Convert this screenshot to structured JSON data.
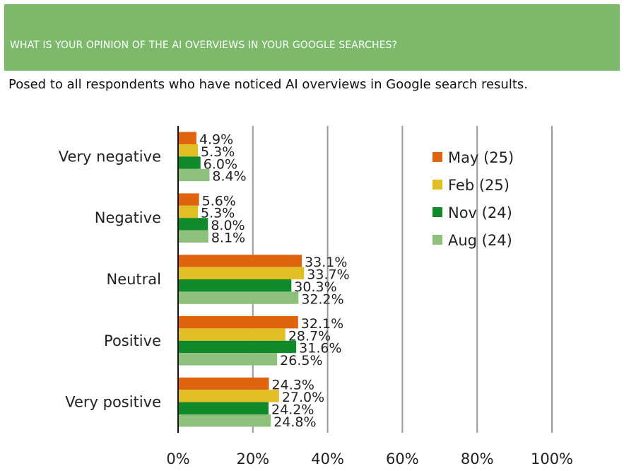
{
  "header": {
    "title": "WHAT IS YOUR OPINION OF THE AI OVERVIEWS IN YOUR GOOGLE SEARCHES?",
    "subtitle": "Posed to all respondents who have noticed AI overviews in Google search results."
  },
  "colors": {
    "header_bg": "#7cb96b",
    "May (25)": "#e0640f",
    "Feb (25)": "#e2be25",
    "Nov (24)": "#118a2c",
    "Aug (24)": "#8dc07a"
  },
  "chart_data": {
    "type": "bar",
    "orientation": "horizontal",
    "title": "WHAT IS YOUR OPINION OF THE AI OVERVIEWS IN YOUR GOOGLE SEARCHES?",
    "subtitle": "Posed to all respondents who have noticed AI overviews in Google search results.",
    "categories": [
      "Very negative",
      "Negative",
      "Neutral",
      "Positive",
      "Very positive"
    ],
    "series": [
      {
        "name": "May (25)",
        "values": [
          4.9,
          5.6,
          33.1,
          32.1,
          24.3
        ],
        "labels": [
          "4.9%",
          "5.6%",
          "33.1%",
          "32.1%",
          "24.3%"
        ]
      },
      {
        "name": "Feb (25)",
        "values": [
          5.3,
          5.3,
          33.7,
          28.7,
          27.0
        ],
        "labels": [
          "5.3%",
          "5.3%",
          "33.7%",
          "28.7%",
          "27.0%"
        ]
      },
      {
        "name": "Nov (24)",
        "values": [
          6.0,
          8.0,
          30.3,
          31.6,
          24.2
        ],
        "labels": [
          "6.0%",
          "8.0%",
          "30.3%",
          "31.6%",
          "24.2%"
        ]
      },
      {
        "name": "Aug (24)",
        "values": [
          8.4,
          8.1,
          32.2,
          26.5,
          24.8
        ],
        "labels": [
          "8.4%",
          "8.1%",
          "32.2%",
          "26.5%",
          "24.8%"
        ]
      }
    ],
    "xlim": [
      0,
      100
    ],
    "x_ticks": [
      0,
      20,
      40,
      60,
      80,
      100
    ],
    "x_tick_labels": [
      "0%",
      "20%",
      "40%",
      "60%",
      "80%",
      "100%"
    ],
    "grid": true,
    "legend": "right"
  }
}
